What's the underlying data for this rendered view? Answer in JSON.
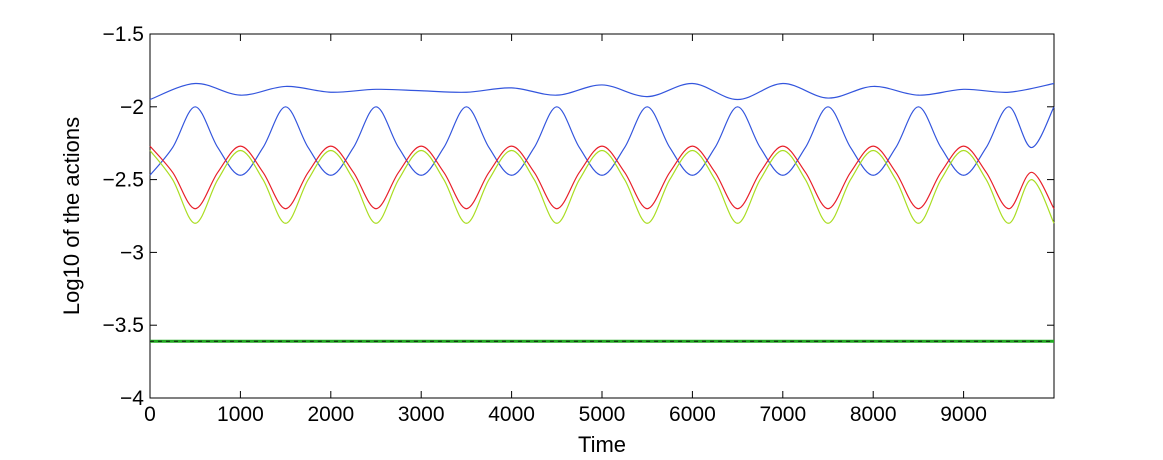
{
  "chart_data": {
    "type": "line",
    "title": "",
    "xlabel": "Time",
    "ylabel": "Log10 of the actions",
    "xlim": [
      0,
      10000
    ],
    "ylim": [
      -4,
      -1.5
    ],
    "x_ticks": [
      0,
      1000,
      2000,
      3000,
      4000,
      5000,
      6000,
      7000,
      8000,
      9000
    ],
    "x_tick_labels": [
      "0",
      "1000",
      "2000",
      "3000",
      "4000",
      "5000",
      "6000",
      "7000",
      "8000",
      "9000"
    ],
    "y_ticks": [
      -4,
      -3.5,
      -3,
      -2.5,
      -2,
      -1.5
    ],
    "y_tick_labels": [
      "−4",
      "−3.5",
      "−3",
      "−2.5",
      "−2",
      "−1.5"
    ],
    "grid": false,
    "legend": "none",
    "series": [
      {
        "color": "#3355dd",
        "x": [
          0,
          500,
          1000,
          1500,
          2000,
          2500,
          3000,
          3500,
          4000,
          4500,
          5000,
          5500,
          6000,
          6500,
          7000,
          7500,
          8000,
          8500,
          9000,
          9500,
          10000
        ],
        "values": [
          -1.95,
          -1.84,
          -1.92,
          -1.86,
          -1.9,
          -1.88,
          -1.89,
          -1.9,
          -1.87,
          -1.92,
          -1.85,
          -1.93,
          -1.84,
          -1.95,
          -1.84,
          -1.94,
          -1.86,
          -1.92,
          -1.88,
          -1.9,
          -1.84
        ]
      },
      {
        "color": "#3355dd",
        "x": [
          0,
          250,
          500,
          750,
          1000,
          1250,
          1500,
          1750,
          2000,
          2250,
          2500,
          2750,
          3000,
          3250,
          3500,
          3750,
          4000,
          4250,
          4500,
          4750,
          5000,
          5250,
          5500,
          5750,
          6000,
          6250,
          6500,
          6750,
          7000,
          7250,
          7500,
          7750,
          8000,
          8250,
          8500,
          8750,
          9000,
          9250,
          9500,
          9750,
          10000
        ],
        "values": [
          -2.47,
          -2.28,
          -2.0,
          -2.28,
          -2.47,
          -2.28,
          -2.0,
          -2.28,
          -2.47,
          -2.28,
          -2.0,
          -2.28,
          -2.47,
          -2.28,
          -2.0,
          -2.28,
          -2.47,
          -2.28,
          -2.0,
          -2.28,
          -2.47,
          -2.28,
          -2.0,
          -2.28,
          -2.47,
          -2.28,
          -2.0,
          -2.28,
          -2.47,
          -2.28,
          -2.0,
          -2.28,
          -2.47,
          -2.28,
          -2.0,
          -2.28,
          -2.47,
          -2.28,
          -2.0,
          -2.28,
          -2.0
        ]
      },
      {
        "color": "#e8202a",
        "x": [
          0,
          250,
          500,
          750,
          1000,
          1250,
          1500,
          1750,
          2000,
          2250,
          2500,
          2750,
          3000,
          3250,
          3500,
          3750,
          4000,
          4250,
          4500,
          4750,
          5000,
          5250,
          5500,
          5750,
          6000,
          6250,
          6500,
          6750,
          7000,
          7250,
          7500,
          7750,
          8000,
          8250,
          8500,
          8750,
          9000,
          9250,
          9500,
          9750,
          10000
        ],
        "values": [
          -2.27,
          -2.45,
          -2.7,
          -2.45,
          -2.27,
          -2.45,
          -2.7,
          -2.45,
          -2.27,
          -2.45,
          -2.7,
          -2.45,
          -2.27,
          -2.45,
          -2.7,
          -2.45,
          -2.27,
          -2.45,
          -2.7,
          -2.45,
          -2.27,
          -2.45,
          -2.7,
          -2.45,
          -2.27,
          -2.45,
          -2.7,
          -2.45,
          -2.27,
          -2.45,
          -2.7,
          -2.45,
          -2.27,
          -2.45,
          -2.7,
          -2.45,
          -2.27,
          -2.45,
          -2.7,
          -2.45,
          -2.7
        ]
      },
      {
        "color": "#aadd22",
        "x": [
          0,
          250,
          500,
          750,
          1000,
          1250,
          1500,
          1750,
          2000,
          2250,
          2500,
          2750,
          3000,
          3250,
          3500,
          3750,
          4000,
          4250,
          4500,
          4750,
          5000,
          5250,
          5500,
          5750,
          6000,
          6250,
          6500,
          6750,
          7000,
          7250,
          7500,
          7750,
          8000,
          8250,
          8500,
          8750,
          9000,
          9250,
          9500,
          9750,
          10000
        ],
        "values": [
          -2.3,
          -2.5,
          -2.8,
          -2.5,
          -2.3,
          -2.5,
          -2.8,
          -2.5,
          -2.3,
          -2.5,
          -2.8,
          -2.5,
          -2.3,
          -2.5,
          -2.8,
          -2.5,
          -2.3,
          -2.5,
          -2.8,
          -2.5,
          -2.3,
          -2.5,
          -2.8,
          -2.5,
          -2.3,
          -2.5,
          -2.8,
          -2.5,
          -2.3,
          -2.5,
          -2.8,
          -2.5,
          -2.3,
          -2.5,
          -2.8,
          -2.5,
          -2.3,
          -2.5,
          -2.8,
          -2.5,
          -2.8
        ]
      },
      {
        "color": "#22aa22",
        "x": [
          0,
          10000
        ],
        "values": [
          -3.61,
          -3.61
        ]
      },
      {
        "color": "#111111",
        "x": [
          0,
          10000
        ],
        "values": [
          -3.61,
          -3.61
        ]
      }
    ]
  }
}
